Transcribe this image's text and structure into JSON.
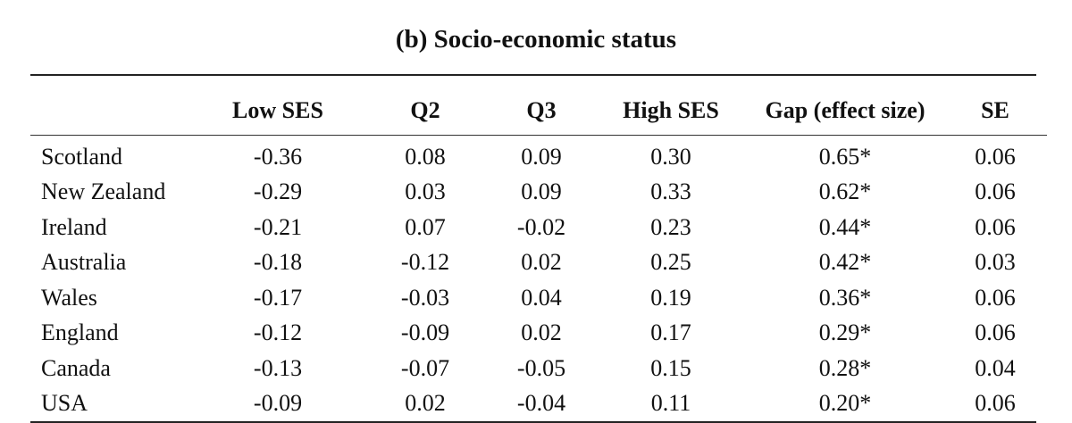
{
  "title": "(b) Socio-economic status",
  "table": {
    "headers": [
      "",
      "Low SES",
      "Q2",
      "Q3",
      "High SES",
      "Gap (effect size)",
      "SE"
    ],
    "rows": [
      [
        "Scotland",
        "-0.36",
        "0.08",
        "0.09",
        "0.30",
        "0.65*",
        "0.06"
      ],
      [
        "New Zealand",
        "-0.29",
        "0.03",
        "0.09",
        "0.33",
        "0.62*",
        "0.06"
      ],
      [
        "Ireland",
        "-0.21",
        "0.07",
        "-0.02",
        "0.23",
        "0.44*",
        "0.06"
      ],
      [
        "Australia",
        "-0.18",
        "-0.12",
        "0.02",
        "0.25",
        "0.42*",
        "0.03"
      ],
      [
        "Wales",
        "-0.17",
        "-0.03",
        "0.04",
        "0.19",
        "0.36*",
        "0.06"
      ],
      [
        "England",
        "-0.12",
        "-0.09",
        "0.02",
        "0.17",
        "0.29*",
        "0.06"
      ],
      [
        "Canada",
        "-0.13",
        "-0.07",
        "-0.05",
        "0.15",
        "0.28*",
        "0.04"
      ],
      [
        "USA",
        "-0.09",
        "0.02",
        "-0.04",
        "0.11",
        "0.20*",
        "0.06"
      ]
    ]
  }
}
